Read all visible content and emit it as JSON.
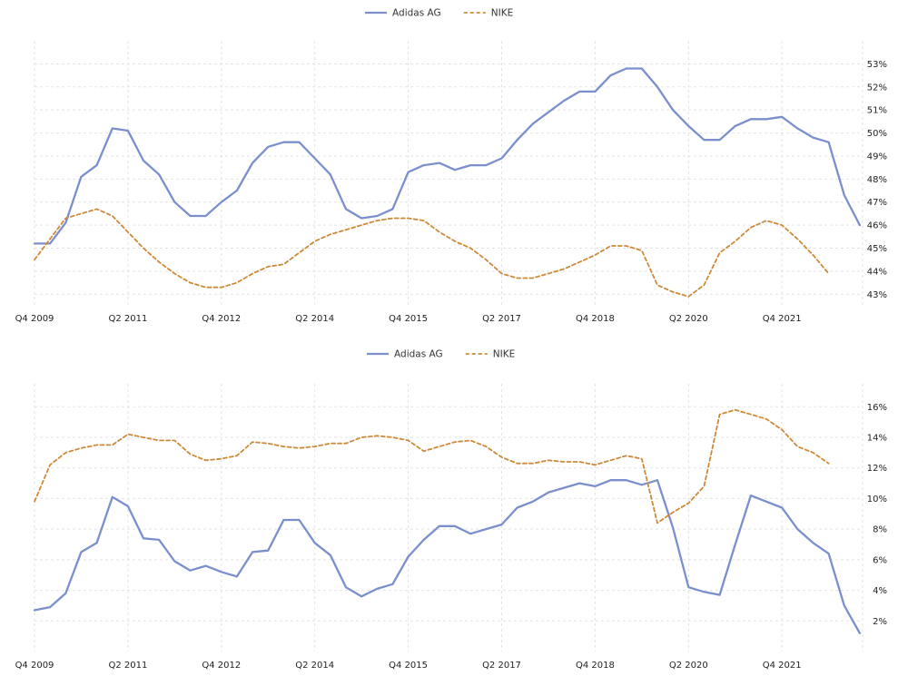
{
  "chart_data": [
    {
      "type": "line",
      "title": "",
      "xlabel": "",
      "ylabel": "",
      "x_ticks": [
        "Q4 2009",
        "Q2 2011",
        "Q4 2012",
        "Q2 2014",
        "Q4 2015",
        "Q2 2017",
        "Q4 2018",
        "Q2 2020",
        "Q4 2021"
      ],
      "y_ticks": [
        "43%",
        "44%",
        "45%",
        "46%",
        "47%",
        "48%",
        "49%",
        "50%",
        "51%",
        "52%",
        "53%"
      ],
      "ylim": [
        42.5,
        54
      ],
      "grid": true,
      "legend_position": "top-center",
      "quarter_start": "Q4 2009",
      "series": [
        {
          "name": "Adidas AG",
          "color": "#7b8fcd",
          "style": "solid",
          "values": [
            45.2,
            45.2,
            46.1,
            48.1,
            48.6,
            50.2,
            50.1,
            48.8,
            48.2,
            47.0,
            46.4,
            46.4,
            47.0,
            47.5,
            48.7,
            49.4,
            49.6,
            49.6,
            48.9,
            48.2,
            46.7,
            46.3,
            46.4,
            46.7,
            48.3,
            48.6,
            48.7,
            48.4,
            48.6,
            48.6,
            48.9,
            49.7,
            50.4,
            50.9,
            51.4,
            51.8,
            51.8,
            52.5,
            52.8,
            52.8,
            52.0,
            51.0,
            50.3,
            49.7,
            49.7,
            50.3,
            50.6,
            50.6,
            50.7,
            50.2,
            49.8,
            49.6,
            47.3,
            46.0
          ]
        },
        {
          "name": "NIKE",
          "color": "#cd8a3a",
          "style": "dashed",
          "values": [
            44.5,
            45.4,
            46.3,
            46.5,
            46.7,
            46.4,
            45.7,
            45.0,
            44.4,
            43.9,
            43.5,
            43.3,
            43.3,
            43.5,
            43.9,
            44.2,
            44.3,
            44.8,
            45.3,
            45.6,
            45.8,
            46.0,
            46.2,
            46.3,
            46.3,
            46.2,
            45.7,
            45.3,
            45.0,
            44.5,
            43.9,
            43.7,
            43.7,
            43.9,
            44.1,
            44.4,
            44.7,
            45.1,
            45.1,
            44.9,
            43.4,
            43.1,
            42.9,
            43.4,
            44.8,
            45.3,
            45.9,
            46.2,
            46.0,
            45.4,
            44.7,
            43.9
          ]
        }
      ]
    },
    {
      "type": "line",
      "title": "",
      "xlabel": "",
      "ylabel": "",
      "x_ticks": [
        "Q4 2009",
        "Q2 2011",
        "Q4 2012",
        "Q2 2014",
        "Q4 2015",
        "Q2 2017",
        "Q4 2018",
        "Q2 2020",
        "Q4 2021"
      ],
      "y_ticks": [
        "2%",
        "4%",
        "6%",
        "8%",
        "10%",
        "12%",
        "14%",
        "16%"
      ],
      "ylim": [
        0,
        17.5
      ],
      "grid": true,
      "legend_position": "top-center",
      "quarter_start": "Q4 2009",
      "series": [
        {
          "name": "Adidas AG",
          "color": "#7b8fcd",
          "style": "solid",
          "values": [
            2.7,
            2.9,
            3.8,
            6.5,
            7.1,
            10.1,
            9.5,
            7.4,
            7.3,
            5.9,
            5.3,
            5.6,
            5.2,
            4.9,
            6.5,
            6.6,
            8.6,
            8.6,
            7.1,
            6.3,
            4.2,
            3.6,
            4.1,
            4.4,
            6.2,
            7.3,
            8.2,
            8.2,
            7.7,
            8.0,
            8.3,
            9.4,
            9.8,
            10.4,
            10.7,
            11.0,
            10.8,
            11.2,
            11.2,
            10.9,
            11.2,
            8.1,
            4.2,
            3.9,
            3.7,
            7.0,
            10.2,
            9.8,
            9.4,
            8.0,
            7.1,
            6.4,
            3.0,
            1.2
          ]
        },
        {
          "name": "NIKE",
          "color": "#cd8a3a",
          "style": "dashed",
          "values": [
            9.8,
            12.2,
            13.0,
            13.3,
            13.5,
            13.5,
            14.2,
            14.0,
            13.8,
            13.8,
            12.9,
            12.5,
            12.6,
            12.8,
            13.7,
            13.6,
            13.4,
            13.3,
            13.4,
            13.6,
            13.6,
            14.0,
            14.1,
            14.0,
            13.8,
            13.1,
            13.4,
            13.7,
            13.8,
            13.4,
            12.7,
            12.3,
            12.3,
            12.5,
            12.4,
            12.4,
            12.2,
            12.5,
            12.8,
            12.6,
            8.4,
            9.1,
            9.7,
            10.8,
            15.5,
            15.8,
            15.5,
            15.2,
            14.5,
            13.4,
            13.0,
            12.3
          ]
        }
      ]
    }
  ]
}
